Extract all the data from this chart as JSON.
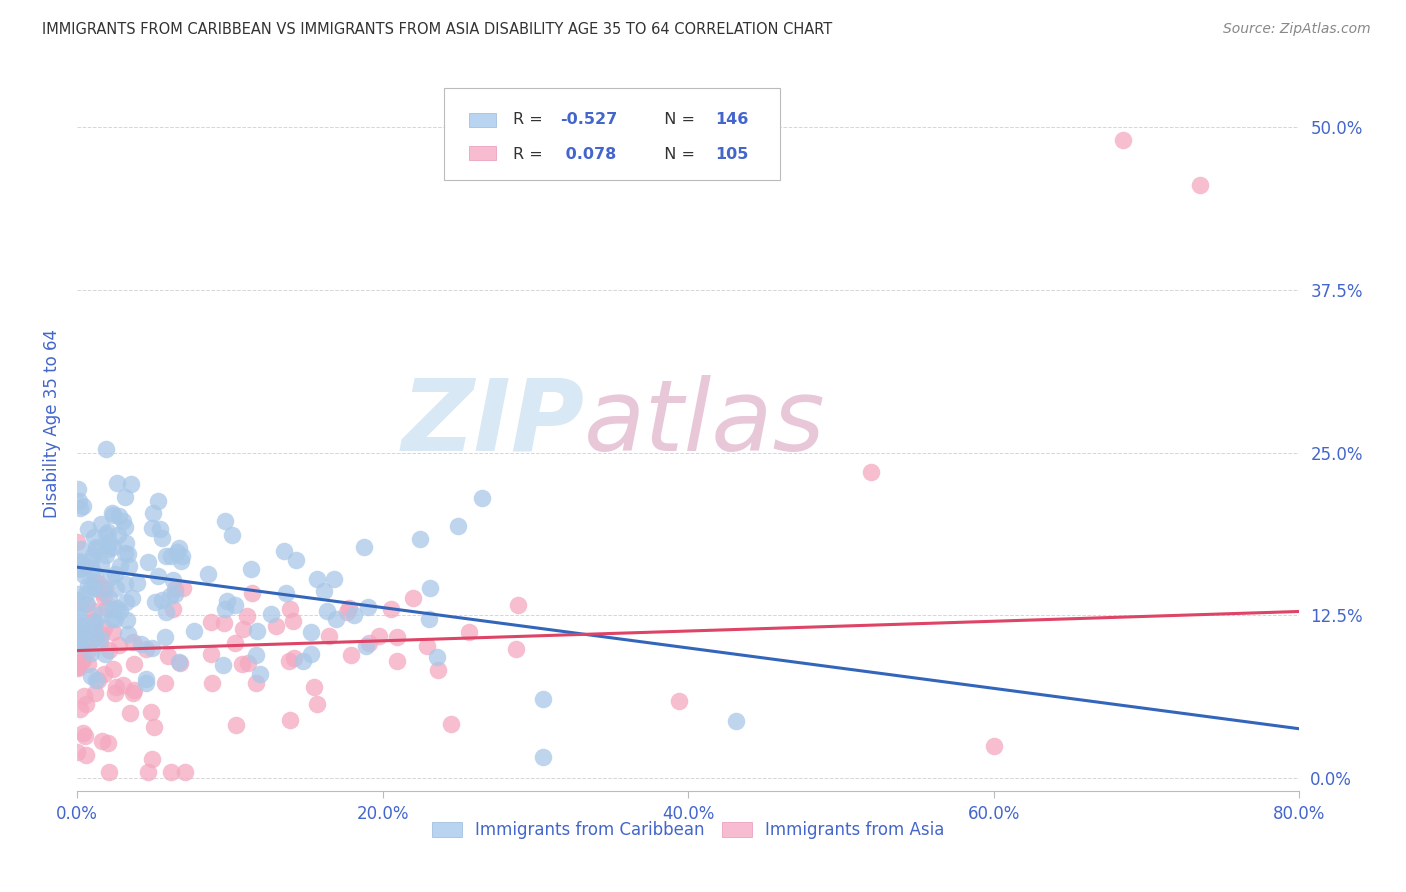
{
  "title": "IMMIGRANTS FROM CARIBBEAN VS IMMIGRANTS FROM ASIA DISABILITY AGE 35 TO 64 CORRELATION CHART",
  "source": "Source: ZipAtlas.com",
  "ylabel": "Disability Age 35 to 64",
  "x_min": 0.0,
  "x_max": 0.8,
  "y_min": -0.01,
  "y_max": 0.555,
  "x_ticks": [
    0.0,
    0.2,
    0.4,
    0.6,
    0.8
  ],
  "x_tick_labels": [
    "0.0%",
    "20.0%",
    "40.0%",
    "60.0%",
    "80.0%"
  ],
  "y_ticks": [
    0.0,
    0.125,
    0.25,
    0.375,
    0.5
  ],
  "y_tick_labels": [
    "0.0%",
    "12.5%",
    "25.0%",
    "37.5%",
    "50.0%"
  ],
  "caribbean_color": "#a8c8e8",
  "asia_color": "#f4a8c0",
  "caribbean_line_color": "#3366bb",
  "asia_line_color": "#dd4466",
  "legend_box_caribbean": "#b8d4f0",
  "legend_box_asia": "#f8bcd0",
  "legend_R_caribbean": "-0.527",
  "legend_N_caribbean": "146",
  "legend_R_asia": "0.078",
  "legend_N_asia": "105",
  "legend_label_caribbean": "Immigrants from Caribbean",
  "legend_label_asia": "Immigrants from Asia",
  "watermark_zip": "ZIP",
  "watermark_atlas": "atlas",
  "watermark_color_zip": "#d8e8f5",
  "watermark_color_atlas": "#e8c8d8",
  "grid_color": "#cccccc",
  "title_color": "#333333",
  "axis_color": "#4466cc",
  "tick_label_color": "#4466cc",
  "caribbean_trend_x": [
    0.0,
    0.8
  ],
  "caribbean_trend_y": [
    0.162,
    0.038
  ],
  "asia_trend_x": [
    0.0,
    0.8
  ],
  "asia_trend_y": [
    0.098,
    0.128
  ]
}
